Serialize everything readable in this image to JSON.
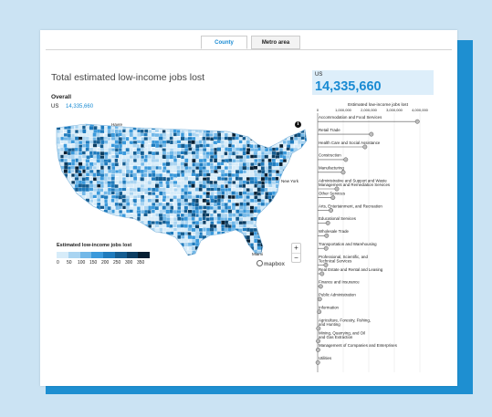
{
  "tabs": [
    {
      "label": "County",
      "active": true
    },
    {
      "label": "Metro area",
      "active": false
    }
  ],
  "page_title": "Total estimated low-income jobs lost",
  "overall_label": "Overall",
  "overall_region": "US",
  "overall_value": "14,335,660",
  "summary": {
    "region": "US",
    "value": "14,335,660"
  },
  "map": {
    "legend_title": "Estimated low-income jobs lost",
    "legend_ticks": [
      "0",
      "50",
      "100",
      "150",
      "200",
      "250",
      "300",
      "350"
    ],
    "legend_colors": [
      "#d7ecf9",
      "#a9d4f1",
      "#72b8e8",
      "#3a99db",
      "#1f7bbd",
      "#155d91",
      "#0c3e63",
      "#061f33"
    ],
    "cities": [
      "Havre",
      "New York",
      "Miami"
    ],
    "attribution": "mapbox",
    "zoom_in": "+",
    "zoom_out": "−",
    "info": "i"
  },
  "chart_data": {
    "type": "lollipop",
    "title": "Estimated low-income jobs lost",
    "xlim": [
      0,
      4000000
    ],
    "x_ticks": [
      "0",
      "1,000,000",
      "2,000,000",
      "3,000,000",
      "4,000,000"
    ],
    "accent": "#1a8bd3",
    "categories": [
      "Accommodation and Food Services",
      "Retail Trade",
      "Health Care and Social Assistance",
      "Construction",
      "Manufacturing",
      "Administrative and Support and Waste Management and Remediation Services",
      "Other Services",
      "Arts, Entertainment, and Recreation",
      "Educational Services",
      "Wholesale Trade",
      "Transportation and Warehousing",
      "Professional, Scientific, and Technical Services",
      "Real Estate and Rental and Leasing",
      "Finance and Insurance",
      "Public Administration",
      "Information",
      "Agriculture, Forestry, Fishing, and Hunting",
      "Mining, Quarrying, and Oil and Gas Extraction",
      "Management of Companies and Enterprises",
      "Utilities"
    ],
    "values": [
      3900000,
      2100000,
      1850000,
      1100000,
      1000000,
      750000,
      600000,
      520000,
      400000,
      350000,
      330000,
      320000,
      170000,
      120000,
      80000,
      60000,
      30000,
      20000,
      15000,
      8000
    ]
  }
}
